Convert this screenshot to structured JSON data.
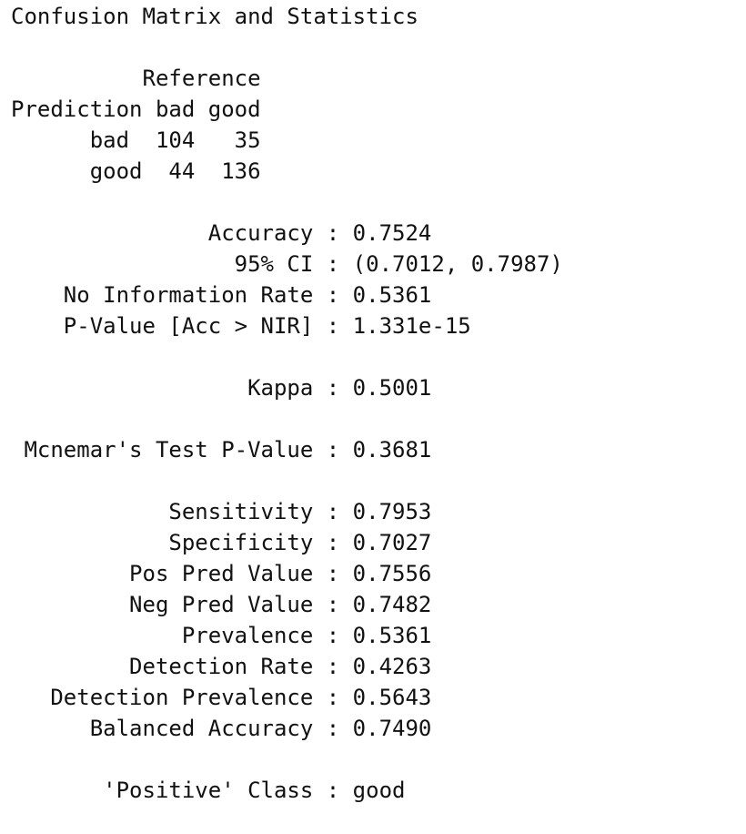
{
  "output": {
    "title": "Confusion Matrix and Statistics",
    "matrix": {
      "reference_header": "          Reference",
      "header_row": "Prediction bad good",
      "row_bad": "      bad  104   35",
      "row_good": "      good  44  136"
    },
    "stats": {
      "accuracy": "               Accuracy : 0.7524",
      "ci": "                 95% CI : (0.7012, 0.7987)",
      "nir": "    No Information Rate : 0.5361",
      "pvalue": "    P-Value [Acc > NIR] : 1.331e-15",
      "kappa": "                  Kappa : 0.5001",
      "mcnemar": " Mcnemar's Test P-Value : 0.3681",
      "sensitivity": "            Sensitivity : 0.7953",
      "specificity": "            Specificity : 0.7027",
      "pos_pred": "         Pos Pred Value : 0.7556",
      "neg_pred": "         Neg Pred Value : 0.7482",
      "prevalence": "             Prevalence : 0.5361",
      "detection_rate": "         Detection Rate : 0.4263",
      "detection_prevalence": "   Detection Prevalence : 0.5643",
      "balanced_accuracy": "      Balanced Accuracy : 0.7490",
      "positive_class": "       'Positive' Class : good"
    }
  }
}
